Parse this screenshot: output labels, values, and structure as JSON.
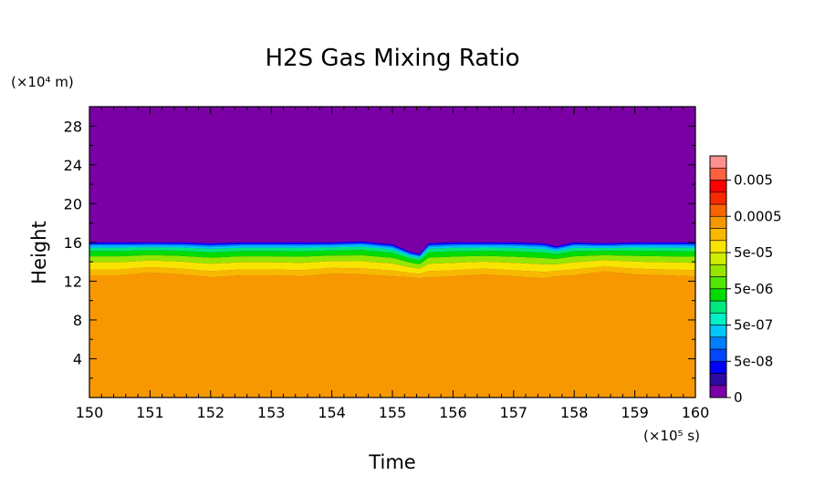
{
  "chart_data": {
    "type": "heatmap",
    "title": "H2S Gas Mixing Ratio",
    "xlabel": "Time",
    "ylabel": "Height",
    "x_unit": "(×10⁵ s)",
    "y_unit": "(×10⁴ m)",
    "xlim": [
      150,
      160
    ],
    "ylim": [
      0,
      30
    ],
    "x_ticks": [
      "150",
      "151",
      "152",
      "153",
      "154",
      "155",
      "156",
      "157",
      "158",
      "159",
      "160"
    ],
    "y_ticks": [
      "4",
      "8",
      "12",
      "16",
      "20",
      "24",
      "28"
    ],
    "colorbar": {
      "colors": [
        "#7a00a6",
        "#2d0aa0",
        "#0000ff",
        "#0048ff",
        "#0080ff",
        "#00c8ff",
        "#00f0c8",
        "#00e880",
        "#00dc00",
        "#50e600",
        "#98e600",
        "#d0ec00",
        "#f8e400",
        "#f8b800",
        "#f89800",
        "#f86400",
        "#f82800",
        "#ff0000",
        "#ff6040",
        "#ff9090"
      ],
      "labels": [
        "0",
        "5e-08",
        "5e-07",
        "5e-06",
        "5e-05",
        "0.0005",
        "0.005"
      ]
    },
    "profile": {
      "time": [
        150.0,
        150.5,
        151.0,
        151.5,
        152.0,
        152.5,
        153.0,
        153.5,
        154.0,
        154.5,
        155.0,
        155.3,
        155.45,
        155.6,
        156.0,
        156.5,
        157.0,
        157.5,
        157.7,
        158.0,
        158.5,
        159.0,
        159.5,
        160.0
      ],
      "orange_top_height": [
        12.6,
        12.6,
        12.9,
        12.7,
        12.4,
        12.6,
        12.6,
        12.5,
        12.8,
        12.7,
        12.5,
        12.4,
        12.3,
        12.4,
        12.5,
        12.7,
        12.5,
        12.3,
        12.5,
        12.6,
        13.0,
        12.7,
        12.6,
        12.5
      ],
      "purple_bottom_height": [
        16.0,
        16.0,
        16.0,
        16.0,
        15.9,
        16.0,
        16.0,
        16.0,
        16.0,
        16.1,
        15.8,
        15.0,
        14.8,
        15.9,
        16.0,
        16.0,
        16.0,
        15.9,
        15.6,
        16.0,
        15.9,
        16.0,
        16.0,
        16.0
      ]
    }
  }
}
